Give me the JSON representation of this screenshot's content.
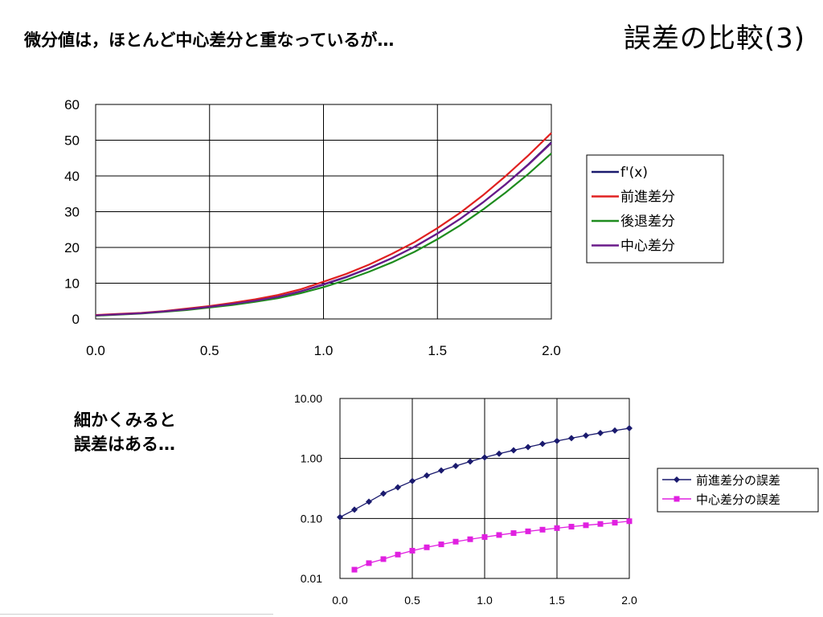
{
  "slide": {
    "title": "誤差の比較(3)",
    "subtitle": "微分値は，ほとんど中心差分と重なっているが…",
    "note_line1": "細かくみると",
    "note_line2": "誤差はある…"
  },
  "chart_data": [
    {
      "type": "line",
      "title": "",
      "xlabel": "",
      "ylabel": "",
      "x": [
        0.0,
        0.1,
        0.2,
        0.3,
        0.4,
        0.5,
        0.6,
        0.7,
        0.8,
        0.9,
        1.0,
        1.1,
        1.2,
        1.3,
        1.4,
        1.5,
        1.6,
        1.7,
        1.8,
        1.9,
        2.0
      ],
      "xlim": [
        0,
        2
      ],
      "ylim": [
        0,
        60
      ],
      "xticks": [
        "0.0",
        "0.5",
        "1.0",
        "1.5",
        "2.0"
      ],
      "yticks": [
        "0",
        "10",
        "20",
        "30",
        "40",
        "50",
        "60"
      ],
      "grid": true,
      "legend_position": "right",
      "series": [
        {
          "name": "f'(x)",
          "color": "#1a1a6e",
          "values": [
            1.0,
            1.3,
            1.6,
            2.1,
            2.7,
            3.4,
            4.2,
            5.1,
            6.2,
            7.7,
            9.6,
            11.7,
            14.2,
            17.0,
            20.2,
            23.9,
            28.0,
            32.6,
            37.7,
            43.3,
            49.4
          ]
        },
        {
          "name": "前進差分",
          "color": "#e02020",
          "values": [
            1.1,
            1.4,
            1.7,
            2.2,
            2.9,
            3.6,
            4.5,
            5.5,
            6.7,
            8.3,
            10.4,
            12.6,
            15.2,
            18.2,
            21.5,
            25.4,
            29.7,
            34.6,
            40.0,
            45.8,
            52.0
          ]
        },
        {
          "name": "後退差分",
          "color": "#1e8c1e",
          "values": [
            0.9,
            1.2,
            1.5,
            2.0,
            2.5,
            3.2,
            3.9,
            4.8,
            5.8,
            7.2,
            8.9,
            10.9,
            13.2,
            15.8,
            18.8,
            22.3,
            26.2,
            30.6,
            35.4,
            40.6,
            46.3
          ]
        },
        {
          "name": "中心差分",
          "color": "#6a1a8a",
          "values": [
            1.0,
            1.3,
            1.6,
            2.1,
            2.7,
            3.4,
            4.2,
            5.1,
            6.2,
            7.7,
            9.7,
            11.8,
            14.2,
            17.0,
            20.2,
            23.9,
            28.0,
            32.6,
            37.7,
            43.2,
            49.2
          ]
        }
      ]
    },
    {
      "type": "line",
      "title": "",
      "xlabel": "",
      "ylabel": "",
      "yscale": "log",
      "xlim": [
        0,
        2
      ],
      "ylim": [
        0.01,
        10
      ],
      "xticks": [
        "0.0",
        "0.5",
        "1.0",
        "1.5",
        "2.0"
      ],
      "yticks": [
        "10.00",
        "1.00",
        "0.10",
        "0.01"
      ],
      "grid": true,
      "legend_position": "right",
      "series": [
        {
          "name": "前進差分の誤差",
          "color": "#1a1a6e",
          "marker": "diamond",
          "x": [
            0.0,
            0.1,
            0.2,
            0.3,
            0.4,
            0.5,
            0.6,
            0.7,
            0.8,
            0.9,
            1.0,
            1.1,
            1.2,
            1.3,
            1.4,
            1.5,
            1.6,
            1.7,
            1.8,
            1.9,
            2.0
          ],
          "values": [
            0.105,
            0.14,
            0.19,
            0.26,
            0.33,
            0.42,
            0.52,
            0.63,
            0.75,
            0.89,
            1.04,
            1.2,
            1.37,
            1.55,
            1.75,
            1.96,
            2.18,
            2.41,
            2.66,
            2.92,
            3.19
          ]
        },
        {
          "name": "中心差分の誤差",
          "color": "#e020e0",
          "marker": "square",
          "x": [
            0.1,
            0.2,
            0.3,
            0.4,
            0.5,
            0.6,
            0.7,
            0.8,
            0.9,
            1.0,
            1.1,
            1.2,
            1.3,
            1.4,
            1.5,
            1.6,
            1.7,
            1.8,
            1.9,
            2.0
          ],
          "values": [
            0.014,
            0.018,
            0.021,
            0.025,
            0.029,
            0.033,
            0.037,
            0.041,
            0.045,
            0.049,
            0.053,
            0.057,
            0.061,
            0.065,
            0.069,
            0.073,
            0.077,
            0.081,
            0.085,
            0.09
          ]
        }
      ]
    }
  ]
}
